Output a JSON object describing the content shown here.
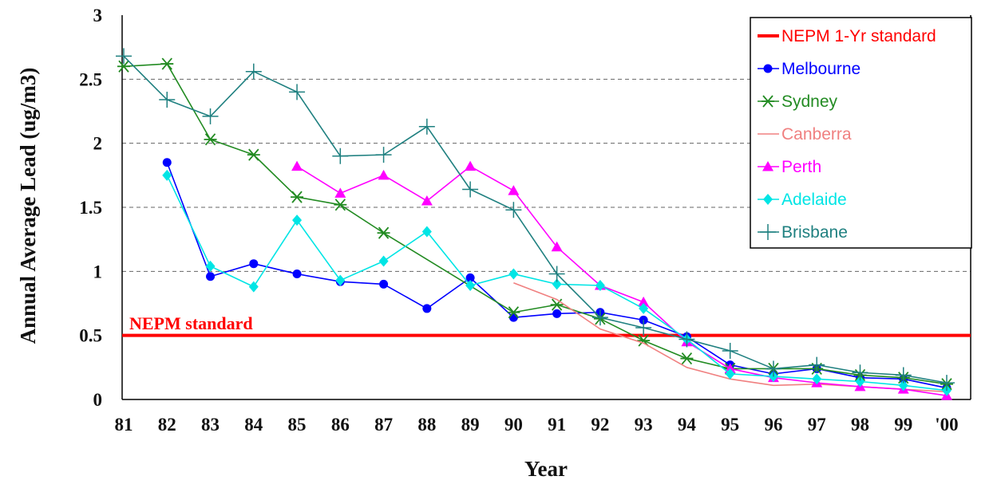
{
  "chart_data": {
    "type": "line",
    "title": "",
    "xlabel": "Year",
    "ylabel": "Annual Average Lead (ug/m3)",
    "categories": [
      "81",
      "82",
      "83",
      "84",
      "85",
      "86",
      "87",
      "88",
      "89",
      "90",
      "91",
      "92",
      "93",
      "94",
      "95",
      "96",
      "97",
      "98",
      "99",
      "'00"
    ],
    "ylim": [
      0,
      3
    ],
    "yticks": [
      "0",
      "0.5",
      "1",
      "1.5",
      "2",
      "2.5",
      "3"
    ],
    "grid": "dashed horizontal lines at 1, 1.5, 2, 2.5",
    "legend_position": "top-right",
    "standard": {
      "name": "NEPM 1-Yr standard",
      "label": "NEPM standard",
      "value": 0.5,
      "color": "#ff0000"
    },
    "series": [
      {
        "name": "Melbourne",
        "color": "#0000ff",
        "marker": "circle",
        "values": [
          null,
          1.85,
          0.96,
          1.06,
          0.98,
          0.92,
          0.9,
          0.71,
          0.95,
          0.64,
          0.67,
          0.68,
          0.62,
          0.49,
          0.27,
          0.2,
          0.24,
          0.17,
          0.16,
          0.09
        ]
      },
      {
        "name": "Sydney",
        "color": "#228b22",
        "marker": "star",
        "values": [
          2.6,
          2.62,
          2.03,
          1.91,
          1.58,
          1.52,
          1.3,
          null,
          null,
          0.68,
          0.74,
          0.63,
          0.46,
          0.32,
          0.24,
          0.24,
          0.24,
          0.19,
          0.17,
          0.12
        ]
      },
      {
        "name": "Canberra",
        "color": "#f08080",
        "marker": "none",
        "values": [
          null,
          null,
          null,
          null,
          null,
          null,
          null,
          null,
          null,
          0.91,
          0.78,
          0.55,
          0.44,
          0.25,
          0.16,
          0.11,
          0.12,
          0.1,
          0.08,
          0.06
        ]
      },
      {
        "name": "Perth",
        "color": "#ff00ff",
        "marker": "triangle",
        "values": [
          null,
          null,
          null,
          null,
          1.82,
          1.61,
          1.75,
          1.55,
          1.82,
          1.63,
          1.19,
          0.89,
          0.76,
          0.45,
          0.24,
          0.17,
          0.13,
          0.1,
          0.08,
          0.03
        ]
      },
      {
        "name": "Adelaide",
        "color": "#00e5e5",
        "marker": "diamond",
        "values": [
          null,
          1.75,
          1.04,
          0.88,
          1.4,
          0.93,
          1.08,
          1.31,
          0.89,
          0.98,
          0.9,
          0.89,
          0.71,
          0.47,
          0.2,
          0.18,
          0.16,
          0.14,
          0.11,
          0.07
        ]
      },
      {
        "name": "Brisbane",
        "color": "#1f8080",
        "marker": "plus",
        "values": [
          2.68,
          2.34,
          2.21,
          2.56,
          2.4,
          1.9,
          1.91,
          2.13,
          1.64,
          1.48,
          0.98,
          0.64,
          0.56,
          0.47,
          0.38,
          0.24,
          0.27,
          0.21,
          0.19,
          0.13
        ]
      }
    ]
  }
}
